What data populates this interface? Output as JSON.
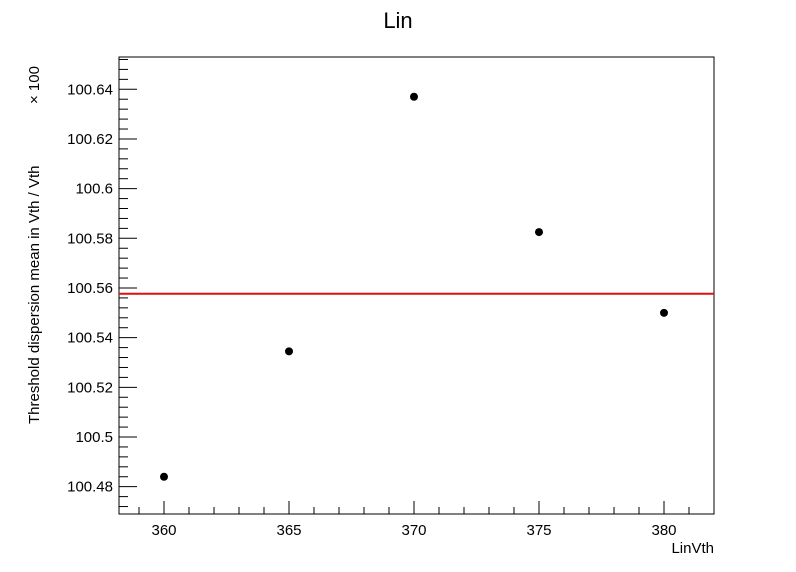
{
  "chart_data": {
    "type": "scatter",
    "title": "Lin",
    "xlabel": "LinVth",
    "ylabel": "Threshold dispersion mean in Vth / Vth",
    "y_multiplier": "× 100",
    "xlim": [
      358.2,
      382
    ],
    "ylim": [
      100.469,
      100.653
    ],
    "x_ticks": [
      360,
      365,
      370,
      375,
      380
    ],
    "x_tick_labels": [
      "360",
      "365",
      "370",
      "375",
      "380"
    ],
    "y_ticks": [
      100.48,
      100.5,
      100.52,
      100.54,
      100.56,
      100.58,
      100.6,
      100.62,
      100.64
    ],
    "y_tick_labels": [
      "100.48",
      "100.5",
      "100.52",
      "100.54",
      "100.56",
      "100.58",
      "100.6",
      "100.62",
      "100.64"
    ],
    "series": [
      {
        "x": [
          360,
          365,
          370,
          375,
          380
        ],
        "y": [
          100.484,
          100.5345,
          100.637,
          100.5825,
          100.55
        ]
      }
    ],
    "fit_line": {
      "y": 100.5577,
      "color": "#dd1111"
    },
    "grid": false,
    "marker_color": "#000000"
  }
}
